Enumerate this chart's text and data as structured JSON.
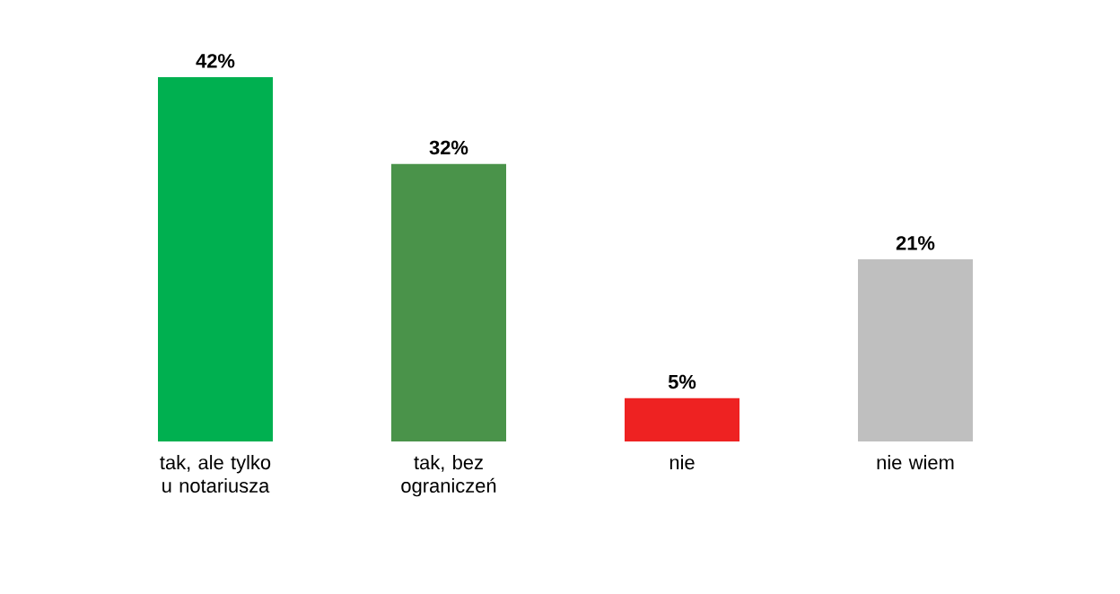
{
  "chart_data": {
    "type": "bar",
    "categories": [
      "tak, ale tylko u notariusza",
      "tak, bez ograniczeń",
      "nie",
      "nie wiem"
    ],
    "values": [
      42,
      32,
      5,
      21
    ],
    "colors": [
      "#00b050",
      "#4a934a",
      "#ee2222",
      "#bfbfbf"
    ],
    "value_labels": [
      "42%",
      "32%",
      "5%",
      "21%"
    ]
  }
}
